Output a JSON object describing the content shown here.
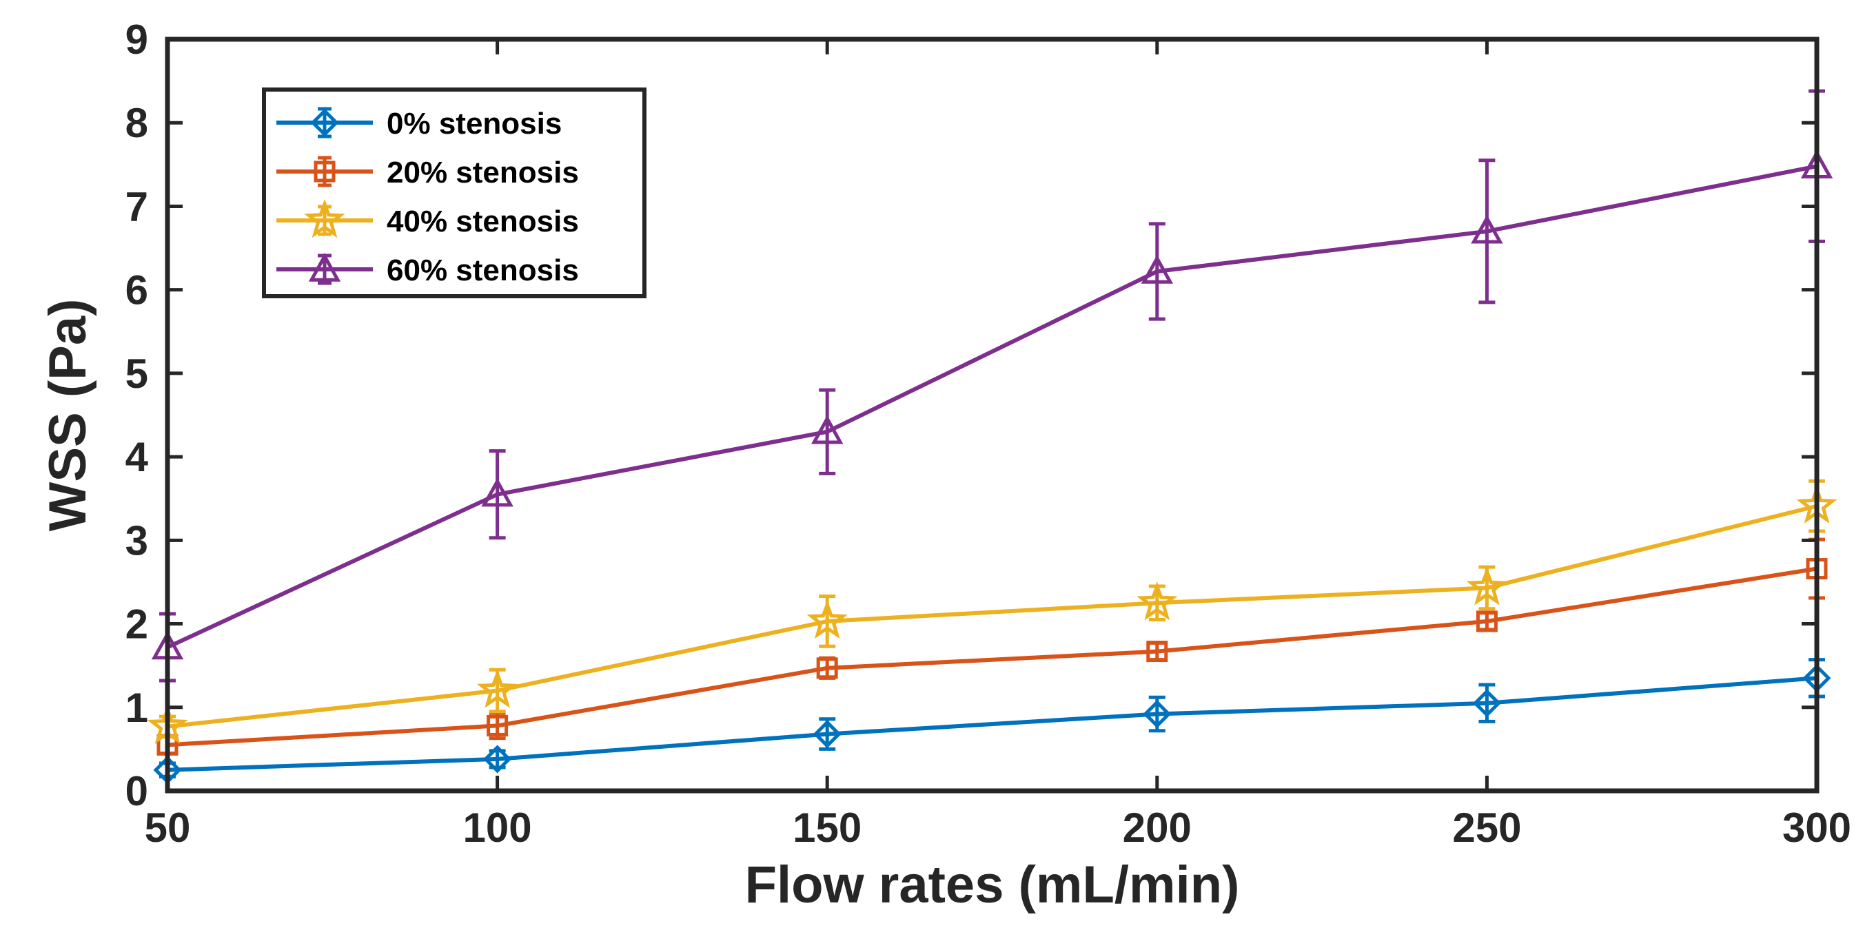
{
  "chart_data": {
    "type": "line",
    "title": "",
    "xlabel": "Flow rates (mL/min)",
    "ylabel": "WSS (Pa)",
    "x": [
      50,
      100,
      150,
      200,
      250,
      300
    ],
    "xlim": [
      50,
      300
    ],
    "ylim": [
      0,
      9
    ],
    "xticks": [
      "50",
      "100",
      "150",
      "200",
      "250",
      "300"
    ],
    "yticks": [
      "0",
      "1",
      "2",
      "3",
      "4",
      "5",
      "6",
      "7",
      "8",
      "9"
    ],
    "grid": false,
    "legend_position": "top-left",
    "series": [
      {
        "name": "0% stenosis",
        "color": "#0072BD",
        "marker": "diamond",
        "values": [
          0.25,
          0.38,
          0.68,
          0.92,
          1.05,
          1.35
        ],
        "errors": [
          0.08,
          0.1,
          0.18,
          0.2,
          0.22,
          0.22
        ]
      },
      {
        "name": "20% stenosis",
        "color": "#D95319",
        "marker": "square",
        "values": [
          0.55,
          0.78,
          1.47,
          1.67,
          2.03,
          2.66
        ],
        "errors": [
          0.1,
          0.15,
          0.12,
          0.1,
          0.1,
          0.35
        ]
      },
      {
        "name": "40% stenosis",
        "color": "#EDB120",
        "marker": "star",
        "values": [
          0.77,
          1.2,
          2.03,
          2.25,
          2.43,
          3.41
        ],
        "errors": [
          0.12,
          0.25,
          0.3,
          0.2,
          0.25,
          0.3
        ]
      },
      {
        "name": "60% stenosis",
        "color": "#7E2F8E",
        "marker": "triangle",
        "values": [
          1.72,
          3.55,
          4.3,
          6.22,
          6.7,
          7.48
        ],
        "errors": [
          0.4,
          0.52,
          0.5,
          0.57,
          0.85,
          0.9
        ]
      }
    ]
  }
}
